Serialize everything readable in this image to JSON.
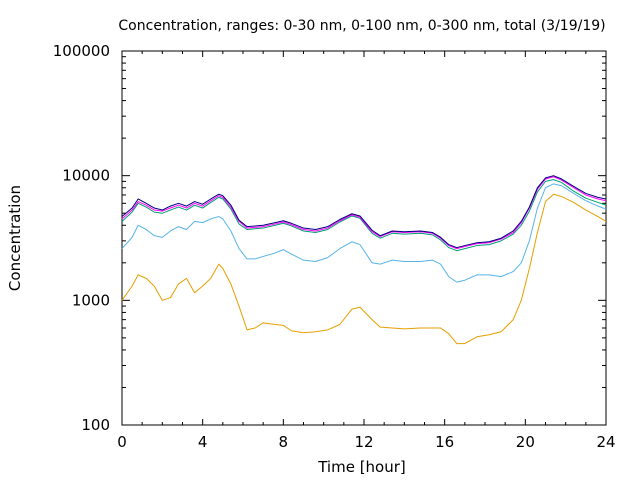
{
  "chart_data": {
    "type": "line",
    "title": "Concentration, ranges: 0-30 nm, 0-100 nm, 0-300 nm, total (3/19/19)",
    "xlabel": "Time [hour]",
    "ylabel": "Concentration",
    "xlim": [
      0,
      24
    ],
    "ylim": [
      100,
      100000
    ],
    "yscale": "log",
    "grid": false,
    "legend": "none",
    "x_ticks": [
      "0",
      "4",
      "8",
      "12",
      "16",
      "20",
      "24"
    ],
    "y_ticks": [
      "100",
      "1000",
      "10000",
      "100000"
    ],
    "x": [
      0,
      0.5,
      0.8,
      1.2,
      1.6,
      2.0,
      2.4,
      2.8,
      3.2,
      3.6,
      4.0,
      4.4,
      4.8,
      5.0,
      5.4,
      5.8,
      6.2,
      6.6,
      7.0,
      7.6,
      8.0,
      8.4,
      9.0,
      9.6,
      10.2,
      10.8,
      11.4,
      11.8,
      12.4,
      12.8,
      13.4,
      14.0,
      14.8,
      15.4,
      15.8,
      16.2,
      16.6,
      17.0,
      17.6,
      18.2,
      18.8,
      19.4,
      19.8,
      20.2,
      20.6,
      21.0,
      21.4,
      21.8,
      22.4,
      23.0,
      23.6,
      24.0
    ],
    "series": [
      {
        "color": "#000080",
        "values": [
          4700,
          5500,
          6500,
          6000,
          5500,
          5300,
          5700,
          6000,
          5700,
          6200,
          5900,
          6500,
          7100,
          6900,
          5800,
          4400,
          3900,
          3950,
          4000,
          4200,
          4350,
          4150,
          3800,
          3700,
          3900,
          4450,
          4950,
          4750,
          3650,
          3300,
          3600,
          3550,
          3600,
          3500,
          3200,
          2800,
          2650,
          2750,
          2900,
          2950,
          3150,
          3600,
          4300,
          5600,
          8000,
          9600,
          10000,
          9400,
          8200,
          7200,
          6700,
          6500
        ]
      },
      {
        "color": "#ff00ff",
        "values": [
          4500,
          5300,
          6200,
          5800,
          5300,
          5200,
          5500,
          5800,
          5500,
          6000,
          5700,
          6300,
          6900,
          6700,
          5600,
          4300,
          3800,
          3850,
          3900,
          4100,
          4250,
          4050,
          3700,
          3600,
          3800,
          4350,
          4850,
          4650,
          3550,
          3250,
          3550,
          3500,
          3550,
          3450,
          3150,
          2750,
          2600,
          2700,
          2850,
          2900,
          3100,
          3500,
          4200,
          5500,
          7800,
          9400,
          9800,
          9200,
          8000,
          7000,
          6500,
          6300
        ]
      },
      {
        "color": "#009e73",
        "values": [
          4300,
          5100,
          6000,
          5600,
          5100,
          5000,
          5300,
          5600,
          5300,
          5800,
          5500,
          6100,
          6700,
          6500,
          5400,
          4100,
          3700,
          3750,
          3800,
          4000,
          4150,
          3950,
          3600,
          3500,
          3700,
          4250,
          4750,
          4550,
          3450,
          3150,
          3450,
          3400,
          3450,
          3350,
          3050,
          2650,
          2500,
          2600,
          2750,
          2800,
          3000,
          3400,
          4000,
          5200,
          7400,
          9000,
          9300,
          8800,
          7500,
          6600,
          6100,
          5800
        ]
      },
      {
        "color": "#56b4e9",
        "values": [
          2600,
          3200,
          4000,
          3700,
          3300,
          3200,
          3600,
          3900,
          3700,
          4300,
          4200,
          4500,
          4700,
          4500,
          3600,
          2600,
          2150,
          2150,
          2250,
          2400,
          2550,
          2350,
          2100,
          2050,
          2200,
          2600,
          2950,
          2800,
          2000,
          1950,
          2100,
          2050,
          2050,
          2100,
          1950,
          1550,
          1400,
          1450,
          1600,
          1600,
          1550,
          1700,
          2000,
          3000,
          5500,
          8000,
          8600,
          8300,
          7200,
          6300,
          5700,
          5400
        ]
      },
      {
        "color": "#e69f00",
        "values": [
          1000,
          1300,
          1600,
          1500,
          1300,
          1000,
          1050,
          1350,
          1500,
          1150,
          1300,
          1500,
          1950,
          1800,
          1350,
          900,
          580,
          600,
          660,
          640,
          630,
          570,
          550,
          560,
          580,
          640,
          850,
          880,
          700,
          610,
          600,
          590,
          600,
          600,
          600,
          540,
          450,
          450,
          510,
          530,
          560,
          700,
          1000,
          1800,
          3500,
          6200,
          7100,
          6800,
          6100,
          5300,
          4700,
          4300
        ]
      }
    ]
  }
}
